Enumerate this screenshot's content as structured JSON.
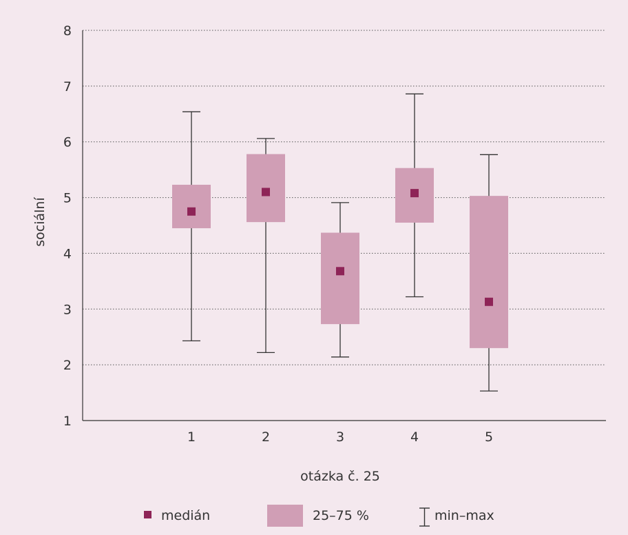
{
  "chart_data": {
    "type": "box",
    "xlabel": "otázka č. 25",
    "ylabel": "sociální",
    "ylim": [
      1,
      8
    ],
    "yticks": [
      1,
      2,
      3,
      4,
      5,
      6,
      7,
      8
    ],
    "categories": [
      "1",
      "2",
      "3",
      "4",
      "5"
    ],
    "boxes": [
      {
        "min": 2.43,
        "q1": 4.45,
        "median": 4.75,
        "q3": 5.23,
        "max": 6.54
      },
      {
        "min": 2.22,
        "q1": 4.56,
        "median": 5.1,
        "q3": 5.78,
        "max": 6.06
      },
      {
        "min": 2.14,
        "q1": 2.73,
        "median": 3.68,
        "q3": 4.37,
        "max": 4.91
      },
      {
        "min": 3.22,
        "q1": 4.55,
        "median": 5.08,
        "q3": 5.53,
        "max": 6.86
      },
      {
        "min": 1.53,
        "q1": 2.3,
        "median": 3.13,
        "q3": 5.03,
        "max": 5.77
      }
    ],
    "grid": "dotted-horizontal",
    "legend": {
      "position": "bottom",
      "items": [
        {
          "label": "medián"
        },
        {
          "label": "25–75 %"
        },
        {
          "label": "min–max"
        }
      ]
    },
    "colors": {
      "background": "#f4e8ee",
      "box": "#d09eb5",
      "median": "#8e2457",
      "whisker": "#333333"
    }
  }
}
